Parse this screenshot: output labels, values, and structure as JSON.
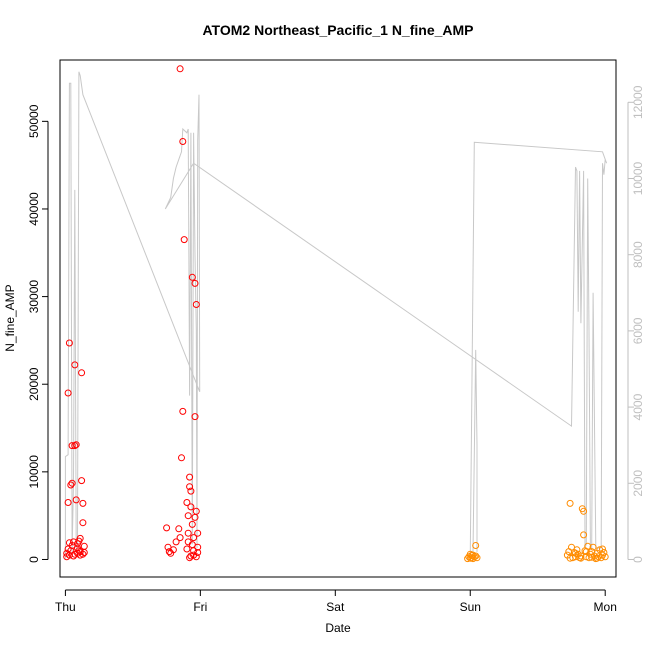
{
  "chart_data": {
    "type": "scatter",
    "title": "ATOM2 Northeast_Pacific_1 N_fine_AMP",
    "xlabel": "Date",
    "ylabel": "N_fine_AMP",
    "x_ticks": [
      "Thu",
      "Fri",
      "Sat",
      "Sun",
      "Mon"
    ],
    "xlim": [
      -0.04,
      4.08
    ],
    "ylim": [
      -2000,
      57000
    ],
    "y_ticks": [
      0,
      10000,
      20000,
      30000,
      40000,
      50000
    ],
    "y2lim": [
      -460,
      13110
    ],
    "y2_ticks": [
      0,
      2000,
      4000,
      6000,
      8000,
      10000,
      12000
    ],
    "colors": {
      "red": "#ff0000",
      "orange": "#ff8c00",
      "line": "#c8c8c8"
    },
    "series": [
      {
        "marker": "circle-open",
        "color": "#ff0000",
        "points": [
          [
            0.01,
            300
          ],
          [
            0.01,
            700
          ],
          [
            0.02,
            6500
          ],
          [
            0.02,
            19000
          ],
          [
            0.03,
            24700
          ],
          [
            0.03,
            1900
          ],
          [
            0.04,
            1000
          ],
          [
            0.04,
            8500
          ],
          [
            0.05,
            13000
          ],
          [
            0.05,
            8700
          ],
          [
            0.06,
            2000
          ],
          [
            0.06,
            400
          ],
          [
            0.07,
            13000
          ],
          [
            0.07,
            22200
          ],
          [
            0.08,
            13100
          ],
          [
            0.08,
            6800
          ],
          [
            0.09,
            1800
          ],
          [
            0.09,
            700
          ],
          [
            0.1,
            2100
          ],
          [
            0.1,
            1000
          ],
          [
            0.11,
            500
          ],
          [
            0.11,
            2400
          ],
          [
            0.12,
            21300
          ],
          [
            0.12,
            9000
          ],
          [
            0.13,
            6400
          ],
          [
            0.13,
            4200
          ],
          [
            0.14,
            1500
          ],
          [
            0.14,
            800
          ],
          [
            0.02,
            1200
          ],
          [
            0.03,
            500
          ],
          [
            0.05,
            1600
          ],
          [
            0.07,
            600
          ],
          [
            0.09,
            1300
          ],
          [
            0.11,
            900
          ],
          [
            0.13,
            600
          ],
          [
            0.75,
            3600
          ],
          [
            0.76,
            1400
          ],
          [
            0.77,
            900
          ],
          [
            0.78,
            700
          ],
          [
            0.8,
            1100
          ],
          [
            0.82,
            2000
          ],
          [
            0.84,
            3500
          ],
          [
            0.85,
            2500
          ],
          [
            0.86,
            11600
          ],
          [
            0.87,
            16900
          ],
          [
            0.87,
            47700
          ],
          [
            0.88,
            36500
          ],
          [
            0.85,
            56000
          ],
          [
            0.9,
            1200
          ],
          [
            0.9,
            6500
          ],
          [
            0.91,
            5000
          ],
          [
            0.91,
            2000
          ],
          [
            0.92,
            9400
          ],
          [
            0.92,
            8300
          ],
          [
            0.93,
            7800
          ],
          [
            0.93,
            6000
          ],
          [
            0.94,
            32200
          ],
          [
            0.94,
            4000
          ],
          [
            0.95,
            2500
          ],
          [
            0.95,
            1000
          ],
          [
            0.96,
            16300
          ],
          [
            0.96,
            31500
          ],
          [
            0.97,
            29100
          ],
          [
            0.97,
            5500
          ],
          [
            0.98,
            3000
          ],
          [
            0.98,
            800
          ],
          [
            0.92,
            200
          ],
          [
            0.93,
            400
          ],
          [
            0.95,
            500
          ],
          [
            0.97,
            300
          ],
          [
            0.91,
            3000
          ],
          [
            0.94,
            1700
          ],
          [
            0.96,
            4800
          ],
          [
            0.98,
            1400
          ]
        ]
      },
      {
        "marker": "circle-open",
        "color": "#ff8c00",
        "points": [
          [
            2.98,
            100
          ],
          [
            2.99,
            300
          ],
          [
            3.0,
            600
          ],
          [
            3.01,
            200
          ],
          [
            3.02,
            500
          ],
          [
            3.02,
            100
          ],
          [
            3.03,
            300
          ],
          [
            3.04,
            1600
          ],
          [
            3.04,
            400
          ],
          [
            3.05,
            200
          ],
          [
            3.0,
            150
          ],
          [
            3.01,
            450
          ],
          [
            3.72,
            500
          ],
          [
            3.73,
            900
          ],
          [
            3.74,
            6400
          ],
          [
            3.75,
            1400
          ],
          [
            3.76,
            200
          ],
          [
            3.77,
            800
          ],
          [
            3.78,
            300
          ],
          [
            3.79,
            1100
          ],
          [
            3.8,
            600
          ],
          [
            3.81,
            200
          ],
          [
            3.82,
            400
          ],
          [
            3.83,
            5800
          ],
          [
            3.84,
            2800
          ],
          [
            3.84,
            5500
          ],
          [
            3.85,
            1000
          ],
          [
            3.86,
            300
          ],
          [
            3.87,
            1500
          ],
          [
            3.88,
            200
          ],
          [
            3.89,
            600
          ],
          [
            3.9,
            900
          ],
          [
            3.91,
            1400
          ],
          [
            3.92,
            400
          ],
          [
            3.93,
            100
          ],
          [
            3.94,
            700
          ],
          [
            3.95,
            300
          ],
          [
            3.96,
            1100
          ],
          [
            3.97,
            200
          ],
          [
            3.98,
            500
          ],
          [
            3.99,
            800
          ],
          [
            4.0,
            300
          ],
          [
            3.74,
            150
          ],
          [
            3.78,
            700
          ],
          [
            3.82,
            150
          ],
          [
            3.86,
            900
          ],
          [
            3.9,
            250
          ],
          [
            3.94,
            150
          ],
          [
            3.98,
            1200
          ]
        ]
      },
      {
        "type": "line",
        "axis": "right",
        "color": "#c8c8c8",
        "points": [
          [
            0.0,
            0
          ],
          [
            0.0,
            2700
          ],
          [
            0.02,
            2750
          ],
          [
            0.03,
            12500
          ],
          [
            0.04,
            12500
          ],
          [
            0.05,
            200
          ],
          [
            0.06,
            2000
          ],
          [
            0.07,
            9700
          ],
          [
            0.08,
            300
          ],
          [
            0.09,
            400
          ],
          [
            0.1,
            12800
          ],
          [
            0.11,
            12700
          ],
          [
            0.13,
            12200
          ],
          [
            0.995,
            4400
          ],
          [
            0.995,
            4450
          ],
          [
            0.99,
            12200
          ],
          [
            0.98,
            11000
          ],
          [
            0.975,
            300
          ],
          [
            0.97,
            6000
          ],
          [
            0.96,
            8000
          ],
          [
            0.95,
            11200
          ],
          [
            0.94,
            400
          ],
          [
            0.93,
            11200
          ],
          [
            0.92,
            4300
          ],
          [
            0.91,
            11300
          ],
          [
            0.9,
            11200
          ],
          [
            0.87,
            11300
          ],
          [
            0.86,
            10700
          ],
          [
            0.84,
            10500
          ],
          [
            0.82,
            10300
          ],
          [
            0.8,
            10000
          ],
          [
            0.78,
            9500
          ],
          [
            0.74,
            9200
          ],
          [
            0.95,
            10400
          ],
          [
            3.75,
            3500
          ],
          [
            3.78,
            10300
          ],
          [
            3.79,
            10200
          ],
          [
            3.8,
            6500
          ],
          [
            3.81,
            10200
          ],
          [
            3.82,
            6200
          ],
          [
            3.84,
            10200
          ],
          [
            3.85,
            300
          ],
          [
            3.86,
            400
          ],
          [
            3.87,
            10000
          ],
          [
            3.88,
            6000
          ],
          [
            3.89,
            300
          ],
          [
            3.9,
            300
          ],
          [
            3.91,
            7000
          ],
          [
            3.93,
            300
          ],
          [
            3.96,
            300
          ],
          [
            3.97,
            300
          ],
          [
            3.98,
            10400
          ],
          [
            3.99,
            10100
          ],
          [
            4.0,
            10500
          ],
          [
            4.01,
            10400
          ],
          [
            3.98,
            10700
          ],
          [
            3.03,
            10950
          ],
          [
            3.0,
            200
          ],
          [
            3.02,
            200
          ],
          [
            3.04,
            5500
          ],
          [
            3.05,
            3000
          ],
          [
            3.05,
            200
          ]
        ]
      }
    ]
  }
}
